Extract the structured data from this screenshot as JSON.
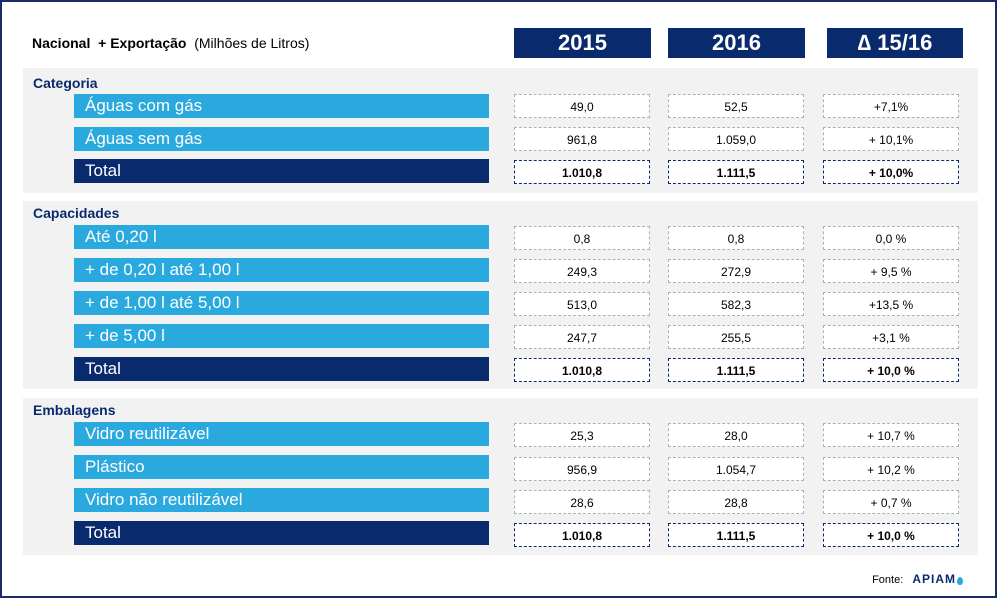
{
  "header": {
    "title_bold": "Nacional  + Exportação",
    "title_normal": "(Milhões de Litros)",
    "col_2015": "2015",
    "col_2016": "2016",
    "col_delta": "∆ 15/16"
  },
  "sections": {
    "categoria": {
      "label": "Categoria",
      "rows": [
        {
          "label": "Águas com gás",
          "v2015": "49,0",
          "v2016": "52,5",
          "delta": "+7,1%"
        },
        {
          "label": "Águas sem gás",
          "v2015": "961,8",
          "v2016": "1.059,0",
          "delta": "+ 10,1%"
        },
        {
          "label": "Total",
          "v2015": "1.010,8",
          "v2016": "1.111,5",
          "delta": "+ 10,0%"
        }
      ]
    },
    "capacidades": {
      "label": "Capacidades",
      "rows": [
        {
          "label": "Até 0,20 l",
          "v2015": "0,8",
          "v2016": "0,8",
          "delta": "0,0 %"
        },
        {
          "label": "+ de 0,20 l até 1,00 l",
          "v2015": "249,3",
          "v2016": "272,9",
          "delta": "+ 9,5 %"
        },
        {
          "label": "+ de 1,00 l até 5,00 l",
          "v2015": "513,0",
          "v2016": "582,3",
          "delta": "+13,5 %"
        },
        {
          "label": "+ de 5,00 l",
          "v2015": "247,7",
          "v2016": "255,5",
          "delta": "+3,1 %"
        },
        {
          "label": "Total",
          "v2015": "1.010,8",
          "v2016": "1.111,5",
          "delta": "+ 10,0 %"
        }
      ]
    },
    "embalagens": {
      "label": "Embalagens",
      "rows": [
        {
          "label": "Vidro reutilizável",
          "v2015": "25,3",
          "v2016": "28,0",
          "delta": "+ 10,7 %"
        },
        {
          "label": "Plástico",
          "v2015": "956,9",
          "v2016": "1.054,7",
          "delta": "+ 10,2 %"
        },
        {
          "label": "Vidro não reutilizável",
          "v2015": "28,6",
          "v2016": "28,8",
          "delta": "+ 0,7 %"
        },
        {
          "label": "Total",
          "v2015": "1.010,8",
          "v2016": "1.111,5",
          "delta": "+ 10,0 %"
        }
      ]
    }
  },
  "footer": {
    "source_label": "Fonte:",
    "logo_text": "APIAM"
  },
  "colors": {
    "dark_blue": "#0a2a6e",
    "light_blue": "#2aa9df",
    "section_bg": "#f2f2f2"
  },
  "chart_data": {
    "type": "table",
    "columns": [
      "2015",
      "2016",
      "∆ 15/16"
    ],
    "groups": [
      {
        "name": "Categoria",
        "rows": [
          {
            "label": "Águas com gás",
            "values": [
              49.0,
              52.5
            ],
            "delta": "+7,1%"
          },
          {
            "label": "Águas sem gás",
            "values": [
              961.8,
              1059.0
            ],
            "delta": "+ 10,1%"
          },
          {
            "label": "Total",
            "values": [
              1010.8,
              1111.5
            ],
            "delta": "+ 10,0%"
          }
        ]
      },
      {
        "name": "Capacidades",
        "rows": [
          {
            "label": "Até 0,20 l",
            "values": [
              0.8,
              0.8
            ],
            "delta": "0,0 %"
          },
          {
            "label": "+ de 0,20 l até 1,00 l",
            "values": [
              249.3,
              272.9
            ],
            "delta": "+ 9,5 %"
          },
          {
            "label": "+ de 1,00 l até 5,00 l",
            "values": [
              513.0,
              582.3
            ],
            "delta": "+13,5 %"
          },
          {
            "label": "+ de 5,00 l",
            "values": [
              247.7,
              255.5
            ],
            "delta": "+3,1 %"
          },
          {
            "label": "Total",
            "values": [
              1010.8,
              1111.5
            ],
            "delta": "+ 10,0 %"
          }
        ]
      },
      {
        "name": "Embalagens",
        "rows": [
          {
            "label": "Vidro reutilizável",
            "values": [
              25.3,
              28.0
            ],
            "delta": "+ 10,7 %"
          },
          {
            "label": "Plástico",
            "values": [
              956.9,
              1054.7
            ],
            "delta": "+ 10,2 %"
          },
          {
            "label": "Vidro não reutilizável",
            "values": [
              28.6,
              28.8
            ],
            "delta": "+ 0,7 %"
          },
          {
            "label": "Total",
            "values": [
              1010.8,
              1111.5
            ],
            "delta": "+ 10,0 %"
          }
        ]
      }
    ]
  }
}
